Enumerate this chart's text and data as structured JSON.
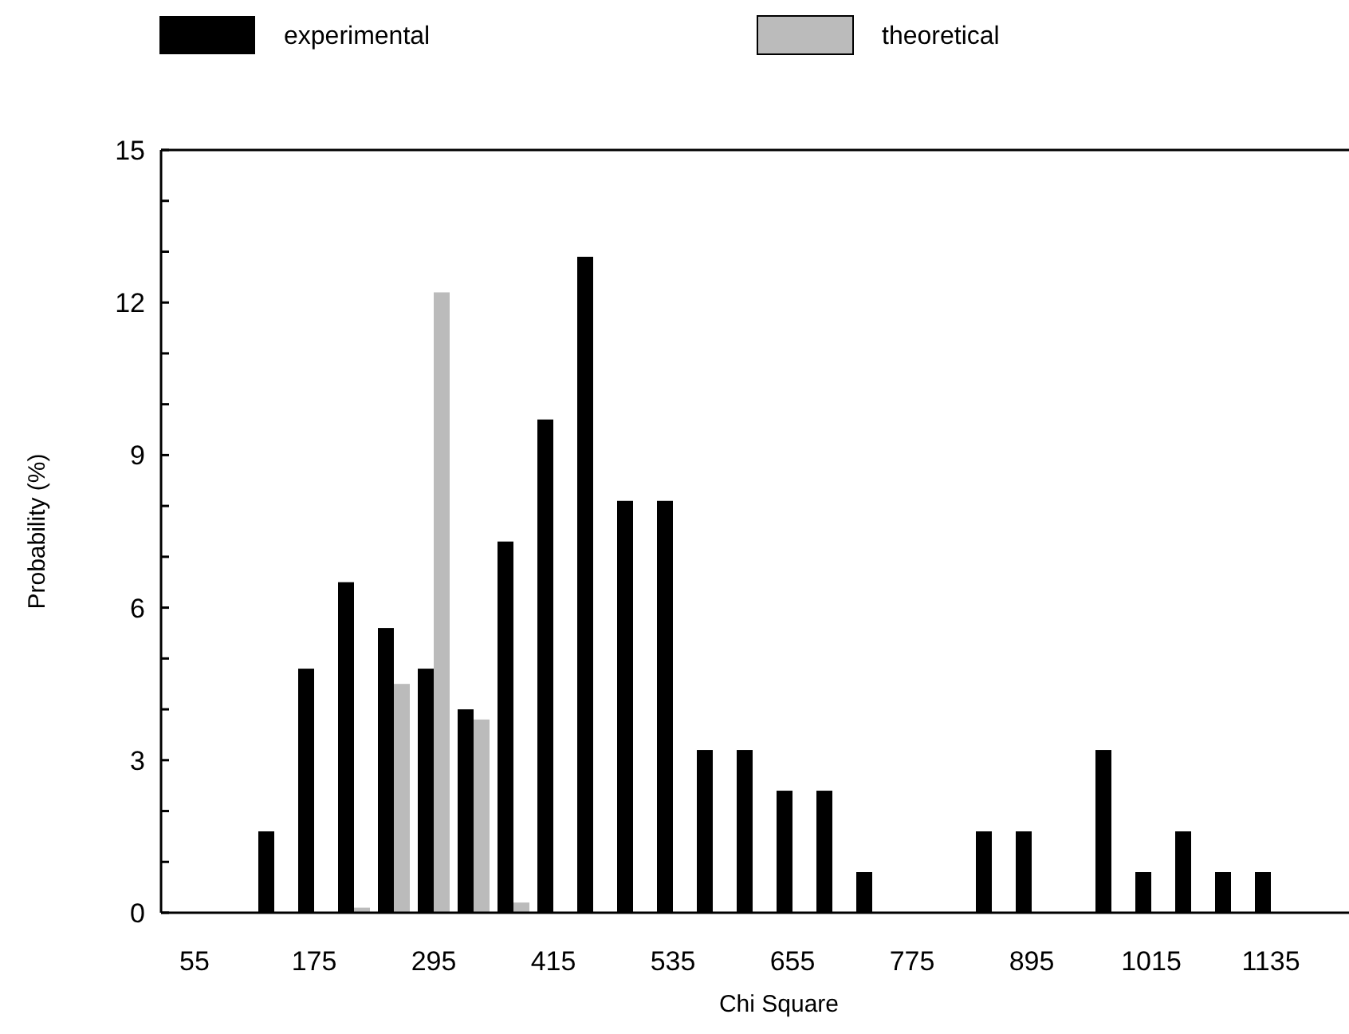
{
  "chart_data": {
    "type": "bar",
    "xlabel": "Chi Square",
    "ylabel": "Probability (%)",
    "categories": [
      "55",
      null,
      null,
      "175",
      null,
      null,
      "295",
      null,
      null,
      "415",
      null,
      null,
      "535",
      null,
      null,
      "655",
      null,
      null,
      "775",
      null,
      null,
      "895",
      null,
      null,
      "1015",
      null,
      null,
      "1135"
    ],
    "series": [
      {
        "name": "experimental",
        "color": "#000000",
        "values": [
          0,
          0,
          1.6,
          4.8,
          6.5,
          5.6,
          4.8,
          4.0,
          7.3,
          9.7,
          12.9,
          8.1,
          8.1,
          3.2,
          3.2,
          2.4,
          2.4,
          0.8,
          0,
          0,
          1.6,
          1.6,
          0,
          3.2,
          0.8,
          1.6,
          0.8,
          0.8
        ]
      },
      {
        "name": "theoretical",
        "color": "#bbbbbb",
        "values": [
          null,
          null,
          null,
          null,
          0.1,
          4.5,
          12.2,
          3.8,
          0.2,
          null,
          null,
          null,
          null,
          null,
          null,
          null,
          null,
          null,
          null,
          null,
          null,
          null,
          null,
          null,
          null,
          null,
          null,
          null
        ]
      }
    ],
    "ylim": [
      0,
      15
    ],
    "yticks": [
      0,
      {
        "value": 1,
        "label": null
      },
      {
        "value": 2,
        "label": null
      },
      3,
      {
        "value": 4,
        "label": null
      },
      {
        "value": 5,
        "label": null
      },
      6,
      {
        "value": 7,
        "label": null
      },
      {
        "value": 8,
        "label": null
      },
      9,
      {
        "value": 10,
        "label": null
      },
      {
        "value": 11,
        "label": null
      },
      12,
      {
        "value": 13,
        "label": null
      },
      {
        "value": 14,
        "label": null
      },
      15
    ],
    "legend": "top",
    "grid": false
  }
}
